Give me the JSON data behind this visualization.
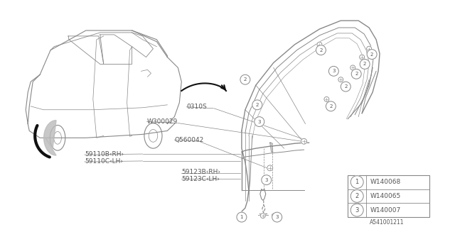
{
  "bg_color": "#ffffff",
  "line_color": "#888888",
  "dark_color": "#444444",
  "text_color": "#555555",
  "diagram_id": "A541001211",
  "legend": [
    {
      "num": "1",
      "code": "W140068"
    },
    {
      "num": "2",
      "code": "W140065"
    },
    {
      "num": "3",
      "code": "W140007"
    }
  ],
  "fig_width": 6.4,
  "fig_height": 3.2,
  "dpi": 100
}
